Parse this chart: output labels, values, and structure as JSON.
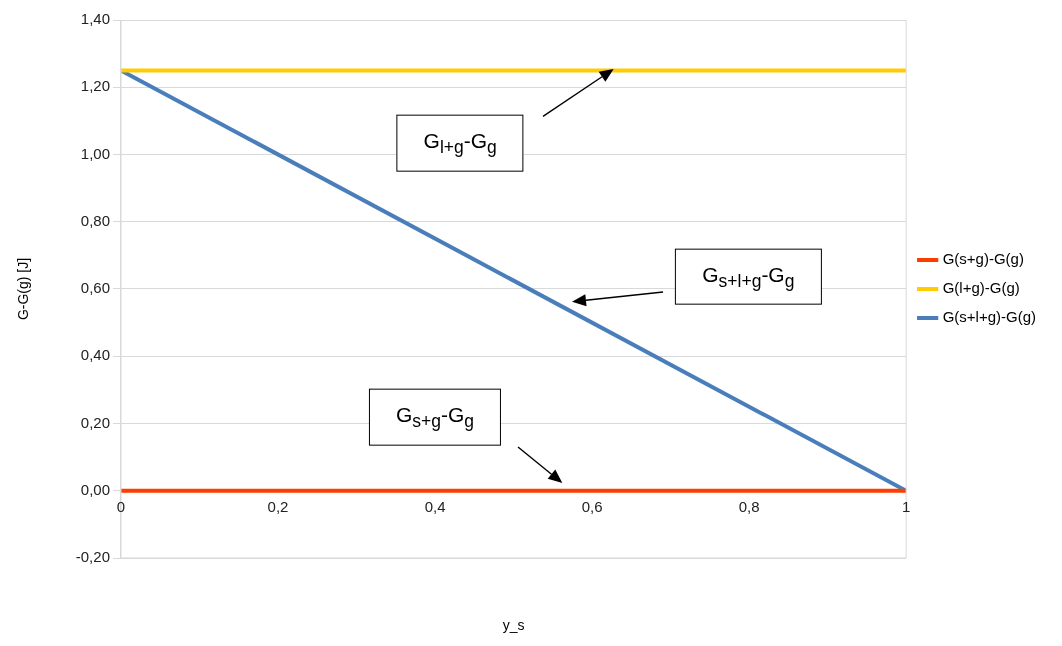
{
  "chart_data": {
    "type": "line",
    "xlabel": "y_s",
    "ylabel": "G-G(g) [J]",
    "x": [
      0,
      1
    ],
    "series": [
      {
        "name": "G(s+g)-G(g)",
        "color": "#ff3d00",
        "values": [
          0,
          0
        ]
      },
      {
        "name": "G(l+g)-G(g)",
        "color": "#ffcc00",
        "values": [
          1.25,
          1.25
        ]
      },
      {
        "name": "G(s+l+g)-G(g)",
        "color": "#4a7ebb",
        "values": [
          1.25,
          0
        ]
      }
    ],
    "xlim": [
      0,
      1
    ],
    "xticks": [
      0,
      {
        "value": 0.2,
        "label": "0,2"
      },
      {
        "value": 0.4,
        "label": "0,4"
      },
      {
        "value": 0.6,
        "label": "0,6"
      },
      {
        "value": 0.8,
        "label": "0,8"
      },
      1
    ],
    "ylim": [
      -0.2,
      1.4
    ],
    "yticks": [
      {
        "value": -0.2,
        "label": "-0,20"
      },
      {
        "value": 0,
        "label": "0,00"
      },
      {
        "value": 0.2,
        "label": "0,20"
      },
      {
        "value": 0.4,
        "label": "0,40"
      },
      {
        "value": 0.6,
        "label": "0,60"
      },
      {
        "value": 0.8,
        "label": "0,80"
      },
      {
        "value": 1,
        "label": "1,00"
      },
      {
        "value": 1.2,
        "label": "1,20"
      },
      {
        "value": 1.4,
        "label": "1,40"
      }
    ],
    "grid": "y",
    "legend": "right",
    "annotations": [
      "G$_{l+g}$-G$_{g}$",
      "G$_{s+l+g}$-G$_{g}$",
      "G$_{s+g}$-G$_{g}$"
    ]
  }
}
